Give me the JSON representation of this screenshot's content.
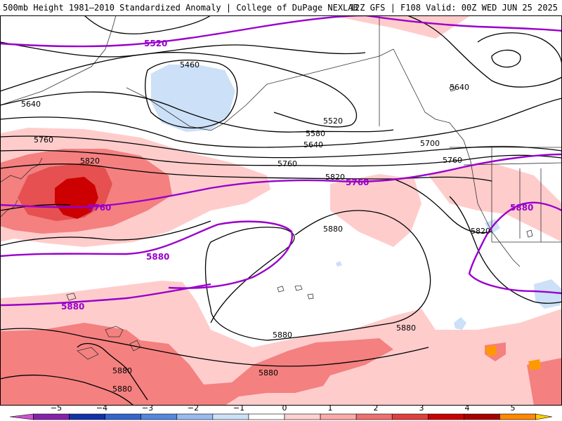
{
  "header": {
    "title": "500mb Height 1981–2010 Standardized Anomaly | College of DuPage NEXLAB",
    "valid": "12Z GFS | F108 Valid: 00Z WED JUN 25 2025"
  },
  "contours": {
    "black": [
      {
        "label": "5460"
      },
      {
        "label": "5520"
      },
      {
        "label": "5580"
      },
      {
        "label": "5640"
      },
      {
        "label": "5640"
      },
      {
        "label": "5640"
      },
      {
        "label": "5700"
      },
      {
        "label": "5760"
      },
      {
        "label": "5760"
      },
      {
        "label": "5760"
      },
      {
        "label": "5820"
      },
      {
        "label": "5820"
      },
      {
        "label": "5820"
      },
      {
        "label": "5880"
      },
      {
        "label": "5880"
      },
      {
        "label": "5880"
      },
      {
        "label": "5880"
      },
      {
        "label": "5880"
      },
      {
        "label": "5880"
      }
    ],
    "purple": [
      {
        "label": "5520"
      },
      {
        "label": "5760"
      },
      {
        "label": "5760"
      },
      {
        "label": "5880"
      },
      {
        "label": "5880"
      },
      {
        "label": "5880"
      }
    ]
  },
  "colorbar": {
    "ticks": [
      "−5",
      "−4",
      "−3",
      "−2",
      "−1",
      "0",
      "1",
      "2",
      "3",
      "4",
      "5"
    ],
    "colors": [
      "#cc55cc",
      "#8822aa",
      "#1133aa",
      "#3366cc",
      "#5588dd",
      "#99bbee",
      "#cce0f7",
      "#ffffff",
      "#ffd0d0",
      "#ffaaaa",
      "#f07070",
      "#e04040",
      "#cc0000",
      "#aa0000",
      "#ff8800",
      "#ffcc00"
    ]
  },
  "map_colors": {
    "pos1": "#ffcccc",
    "pos2": "#f48080",
    "pos3": "#e65050",
    "pos4": "#cc0000",
    "neg1": "#cce0f7",
    "orange": "#ff9900",
    "purple": "#9900cc"
  }
}
